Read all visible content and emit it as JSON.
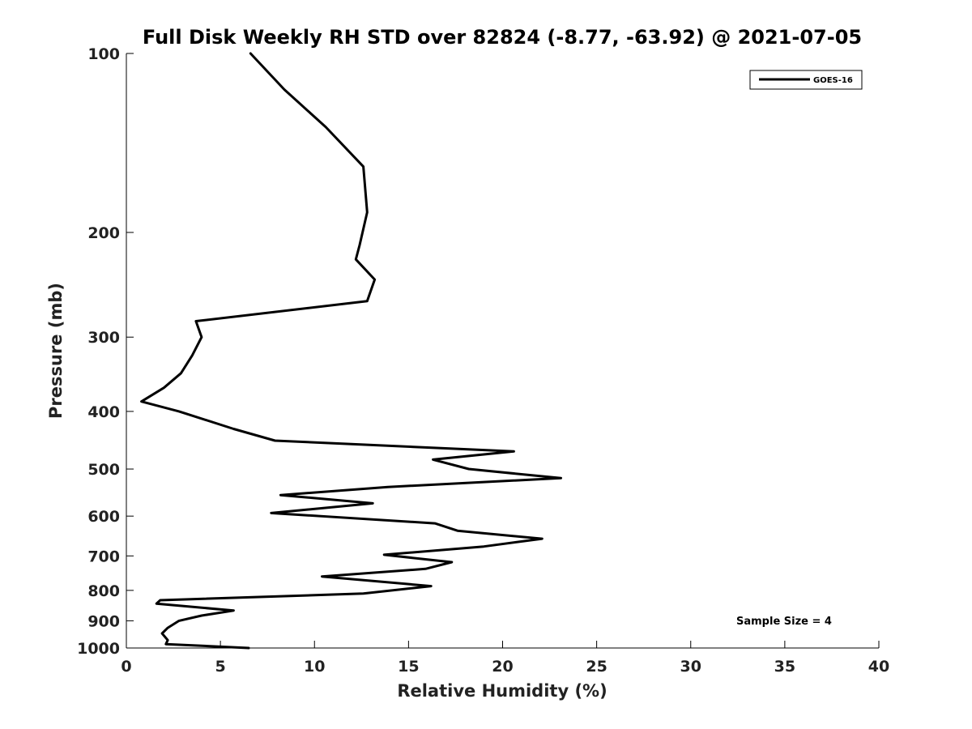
{
  "chart_data": {
    "type": "line",
    "title": "Full Disk Weekly RH STD over 82824 (-8.77, -63.92) @ 2021-07-05",
    "xlabel": "Relative Humidity (%)",
    "ylabel": "Pressure (mb)",
    "xlim": [
      0,
      40
    ],
    "ylim": [
      100,
      1000
    ],
    "y_scale": "log",
    "y_inverted": true,
    "grid": false,
    "x_ticks": [
      0,
      5,
      10,
      15,
      20,
      25,
      30,
      35,
      40
    ],
    "y_ticks": [
      100,
      200,
      300,
      400,
      500,
      600,
      700,
      800,
      900,
      1000
    ],
    "legend_position": "top-right",
    "series": [
      {
        "name": "GOES-16",
        "color": "#000000",
        "x": [
          6.6,
          8.4,
          10.6,
          12.6,
          12.8,
          12.4,
          12.2,
          13.2,
          12.8,
          3.7,
          4.0,
          3.5,
          2.9,
          2.0,
          0.8,
          2.8,
          5.7,
          7.9,
          20.6,
          16.3,
          18.2,
          23.1,
          13.9,
          8.2,
          13.1,
          7.7,
          16.4,
          17.6,
          22.1,
          19.0,
          13.7,
          17.3,
          15.9,
          10.4,
          16.2,
          12.6,
          1.8,
          1.6,
          5.7,
          4.0,
          2.8,
          2.2,
          1.9,
          2.2,
          2.1,
          6.5
        ],
        "y": [
          100,
          115,
          133,
          155,
          185,
          210,
          222,
          240,
          261,
          282,
          300,
          322,
          345,
          365,
          385,
          400,
          428,
          448,
          467,
          482,
          500,
          518,
          536,
          553,
          571,
          593,
          617,
          635,
          655,
          675,
          697,
          717,
          736,
          758,
          787,
          810,
          831,
          842,
          865,
          882,
          900,
          925,
          945,
          970,
          985,
          1000
        ]
      }
    ],
    "annotations": [
      "Sample Size = 4"
    ]
  }
}
